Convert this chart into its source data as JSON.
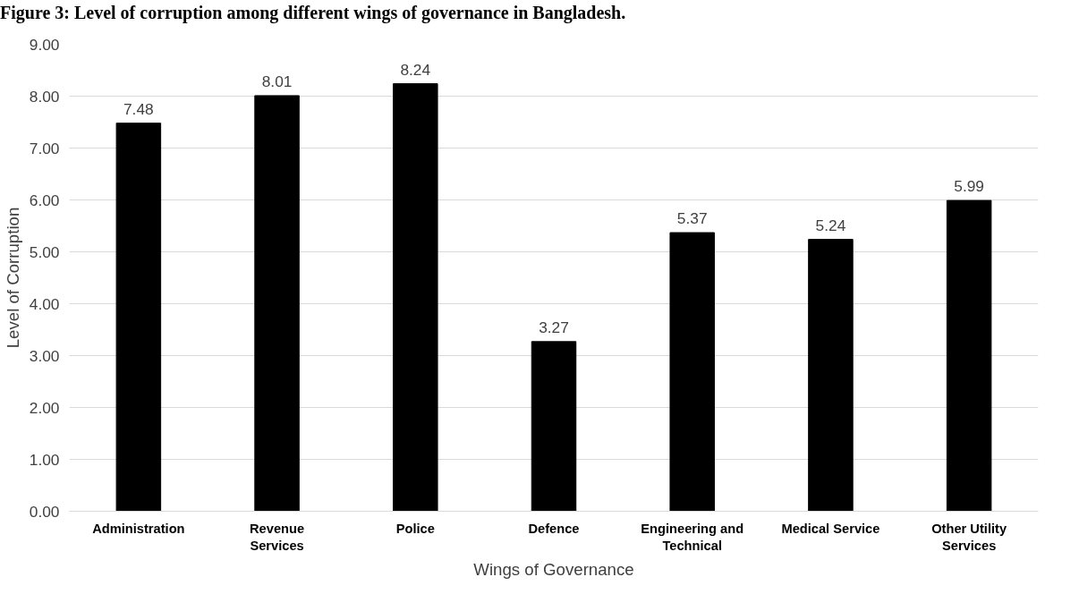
{
  "chart_data": {
    "type": "bar",
    "title": "Figure 3: Level of corruption among different wings of governance in Bangladesh.",
    "xlabel": "Wings of Governance",
    "ylabel": "Level of Corruption",
    "categories": [
      "Administration",
      "Revenue Services",
      "Police",
      "Defence",
      "Engineering and Technical",
      "Medical Service",
      "Other Utility Services"
    ],
    "values": [
      7.48,
      8.01,
      8.24,
      3.27,
      5.37,
      5.24,
      5.99
    ],
    "color": "#000000",
    "ylim": [
      0,
      9
    ],
    "yticks": [
      {
        "value": 0,
        "label": "0.00"
      },
      {
        "value": 1,
        "label": "1.00"
      },
      {
        "value": 2,
        "label": "2.00"
      },
      {
        "value": 3,
        "label": "3.00"
      },
      {
        "value": 4,
        "label": "4.00"
      },
      {
        "value": 5,
        "label": "5.00"
      },
      {
        "value": 6,
        "label": "6.00"
      },
      {
        "value": 7,
        "label": "7.00"
      },
      {
        "value": 8,
        "label": "8.00"
      },
      {
        "value": 9,
        "label": "9.00"
      }
    ],
    "grid": "y",
    "data_labels": true
  }
}
